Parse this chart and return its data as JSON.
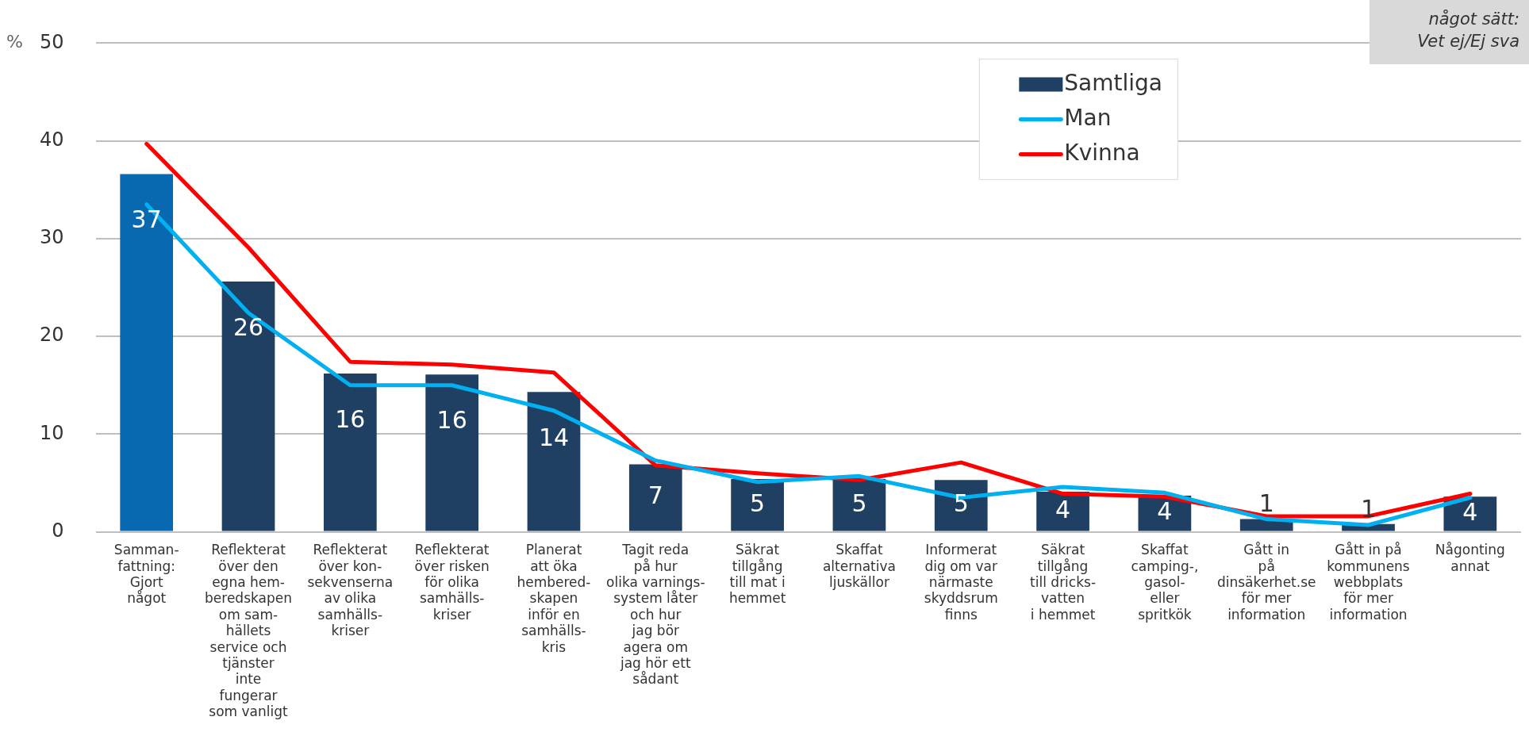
{
  "chart_data": {
    "type": "bar",
    "ylabel": "%",
    "categories": [
      "Samman-\nfattning:\nGjort\nnågot",
      "Reflekterat\növer den\negna hem-\nberedskapen\nom sam-\nhällets\nservice och\ntjänster\ninte\nfungerar\nsom vanligt",
      "Reflekterat\növer kon-\nsekvenserna\nav olika\nsamhälls-\nkriser",
      "Reflekterat\növer risken\nför olika\nsamhälls-\nkriser",
      "Planerat\natt öka\nhembered-\nskapen\ninför en\nsamhälls-\nkris",
      "Tagit reda\npå hur\nolika varnings-\nsystem låter\noch hur\njag bör\nagera om\njag hör ett\nsådant",
      "Säkrat\ntillgång\ntill mat i\nhemmet",
      "Skaffat\nalternativa\nljuskällor",
      "Informerat\ndig om var\nnärmaste\nskyddsrum\nfinns",
      "Säkrat\ntillgång\ntill dricks-\nvatten\ni hemmet",
      "Skaffat\ncamping-,\ngasol-\neller\nspritkök",
      "Gått in\npå\ndinsäkerhet.se\nför mer\ninformation",
      "Gått in på\nkommunens\nwebbplats\nför mer\ninformation",
      "Någonting\nannat"
    ],
    "series": [
      {
        "name": "Samtliga",
        "colors": [
          "#0868b0",
          "#1f3f63",
          "#1f3f63",
          "#1f3f63",
          "#1f3f63",
          "#1f3f63",
          "#1f3f63",
          "#1f3f63",
          "#1f3f63",
          "#1f3f63",
          "#1f3f63",
          "#1f3f63",
          "#1f3f63",
          "#1f3f63"
        ],
        "values": [
          36.6,
          25.6,
          16.2,
          16.1,
          14.3,
          6.9,
          5.4,
          5.4,
          5.3,
          4.1,
          3.7,
          1.3,
          0.8,
          3.6
        ],
        "value_labels": [
          "37",
          "26",
          "16",
          "16",
          "14",
          "7",
          "5",
          "5",
          "5",
          "4",
          "4",
          "1",
          "1",
          "4"
        ]
      },
      {
        "name": "Man",
        "type": "line",
        "color": "#00b0f0",
        "values": [
          33.5,
          22.4,
          15.0,
          15.0,
          12.4,
          7.3,
          5.1,
          5.7,
          3.5,
          4.6,
          4.0,
          1.3,
          0.7,
          3.5
        ]
      },
      {
        "name": "Kvinna",
        "type": "line",
        "color": "#ff0000",
        "values": [
          39.7,
          29.1,
          17.4,
          17.1,
          16.3,
          6.8,
          6.0,
          5.3,
          7.1,
          3.9,
          3.6,
          1.6,
          1.6,
          3.9
        ]
      }
    ],
    "ylim": [
      0,
      50
    ],
    "yticks": [
      0,
      10,
      20,
      30,
      40,
      50
    ],
    "grid": "y",
    "legend": "top right",
    "marker": "none",
    "annotations": [
      "något sätt:\nVet ej/Ej sva"
    ]
  }
}
